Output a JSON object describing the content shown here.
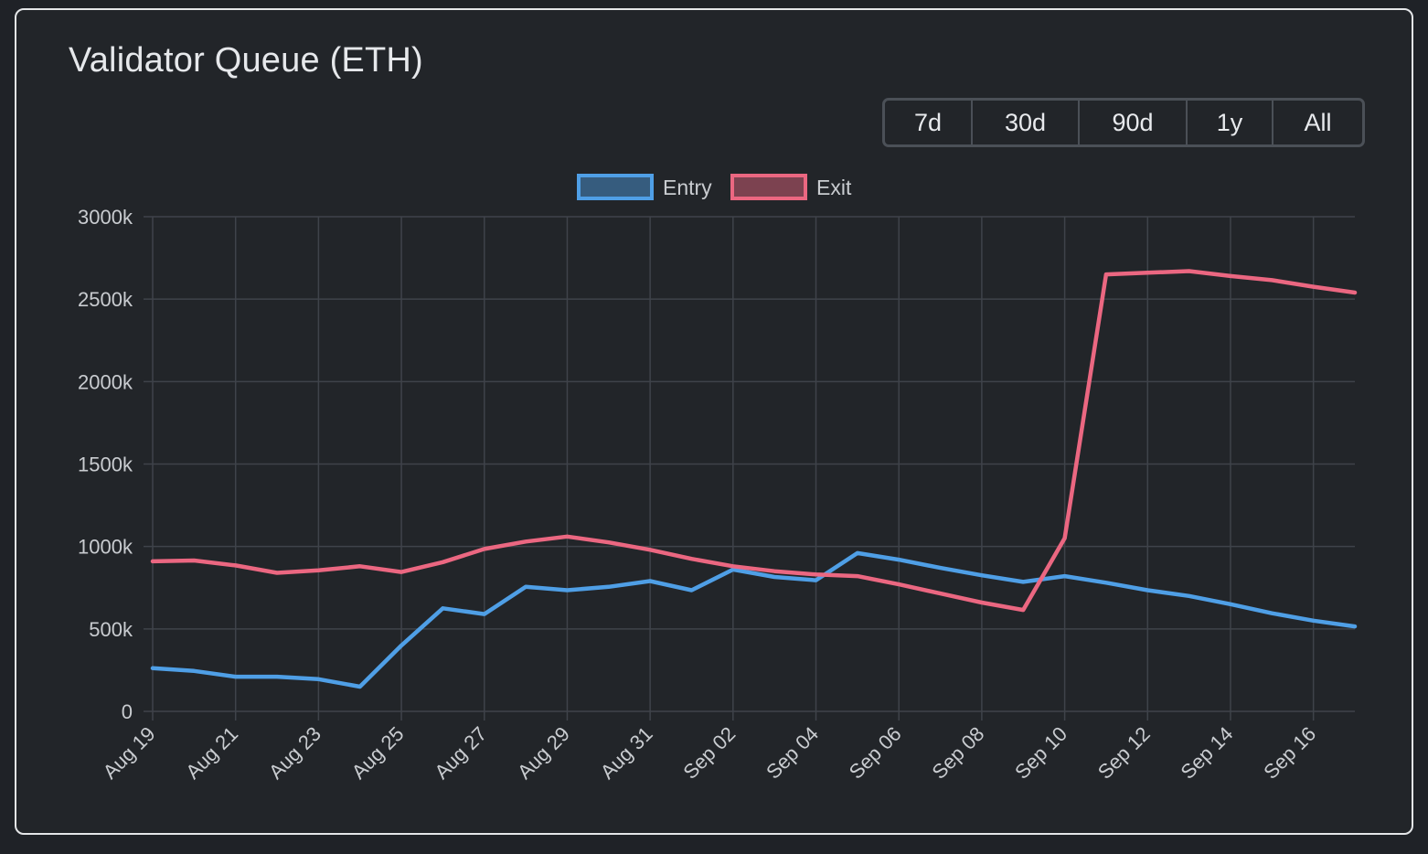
{
  "card": {
    "title": "Validator Queue (ETH)"
  },
  "range_buttons": [
    "7d",
    "30d",
    "90d",
    "1y",
    "All"
  ],
  "colors": {
    "entry": "#4f9fe6",
    "exit": "#eb6781",
    "grid": "#3f434a",
    "tick_label": "#c9ccd0"
  },
  "chart_data": {
    "type": "line",
    "x": [
      "Aug 19",
      "Aug 20",
      "Aug 21",
      "Aug 22",
      "Aug 23",
      "Aug 24",
      "Aug 25",
      "Aug 26",
      "Aug 27",
      "Aug 28",
      "Aug 29",
      "Aug 30",
      "Aug 31",
      "Sep 01",
      "Sep 02",
      "Sep 03",
      "Sep 04",
      "Sep 05",
      "Sep 06",
      "Sep 07",
      "Sep 08",
      "Sep 09",
      "Sep 10",
      "Sep 11",
      "Sep 12",
      "Sep 13",
      "Sep 14",
      "Sep 15",
      "Sep 16",
      "Sep 17"
    ],
    "x_tick_labels": [
      "Aug 19",
      "Aug 21",
      "Aug 23",
      "Aug 25",
      "Aug 27",
      "Aug 29",
      "Aug 31",
      "Sep 02",
      "Sep 04",
      "Sep 06",
      "Sep 08",
      "Sep 10",
      "Sep 12",
      "Sep 14",
      "Sep 16"
    ],
    "y_tick_labels": [
      "0",
      "500k",
      "1000k",
      "1500k",
      "2000k",
      "2500k",
      "3000k"
    ],
    "ylim": [
      0,
      3000
    ],
    "y_unit": "k",
    "grid": true,
    "legend_position": "top-center",
    "series": [
      {
        "name": "Entry",
        "values": [
          262,
          245,
          210,
          210,
          195,
          150,
          400,
          625,
          590,
          755,
          735,
          755,
          790,
          735,
          860,
          815,
          795,
          960,
          920,
          870,
          825,
          785,
          820,
          780,
          735,
          700,
          650,
          595,
          550,
          515
        ]
      },
      {
        "name": "Exit",
        "values": [
          910,
          915,
          885,
          840,
          855,
          880,
          845,
          905,
          985,
          1030,
          1060,
          1025,
          980,
          925,
          880,
          850,
          830,
          820,
          770,
          715,
          660,
          615,
          1050,
          2650,
          2660,
          2670,
          2640,
          2615,
          2575,
          2540
        ]
      }
    ]
  }
}
